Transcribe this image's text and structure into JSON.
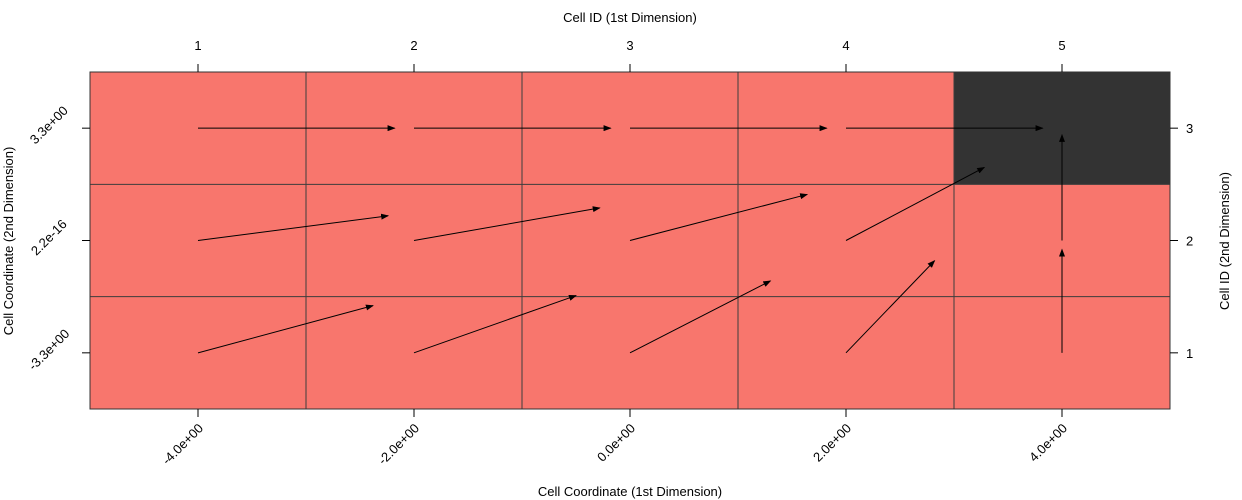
{
  "chart_data": {
    "type": "heatmap",
    "title": "",
    "x_bottom_label": "Cell Coordinate (1st Dimension)",
    "x_top_label": "Cell ID (1st Dimension)",
    "y_left_label": "Cell Coordinate (2nd Dimension)",
    "y_right_label": "Cell ID (2nd Dimension)",
    "x_ids": [
      "1",
      "2",
      "3",
      "4",
      "5"
    ],
    "y_ids": [
      "1",
      "2",
      "3"
    ],
    "x_coord_ticks": [
      "-4.0e+00",
      "-2.0e+00",
      "0.0e+00",
      "2.0e+00",
      "4.0e+00"
    ],
    "y_coord_ticks": [
      "-3.3e+00",
      "2.2e-16",
      "3.3e+00"
    ],
    "cell_colors": {
      "default": "#f8766d",
      "highlight": "#333333"
    },
    "cells": [
      {
        "x": 1,
        "y": 1,
        "state": "default",
        "arrow_dx": 0.81,
        "arrow_dy": 0.42
      },
      {
        "x": 2,
        "y": 1,
        "state": "default",
        "arrow_dx": 0.75,
        "arrow_dy": 0.51
      },
      {
        "x": 3,
        "y": 1,
        "state": "default",
        "arrow_dx": 0.65,
        "arrow_dy": 0.64
      },
      {
        "x": 4,
        "y": 1,
        "state": "default",
        "arrow_dx": 0.41,
        "arrow_dy": 0.82
      },
      {
        "x": 5,
        "y": 1,
        "state": "default",
        "arrow_dx": 0.0,
        "arrow_dy": 0.92
      },
      {
        "x": 1,
        "y": 2,
        "state": "default",
        "arrow_dx": 0.88,
        "arrow_dy": 0.22
      },
      {
        "x": 2,
        "y": 2,
        "state": "default",
        "arrow_dx": 0.86,
        "arrow_dy": 0.29
      },
      {
        "x": 3,
        "y": 2,
        "state": "default",
        "arrow_dx": 0.82,
        "arrow_dy": 0.41
      },
      {
        "x": 4,
        "y": 2,
        "state": "default",
        "arrow_dx": 0.64,
        "arrow_dy": 0.65
      },
      {
        "x": 5,
        "y": 2,
        "state": "default",
        "arrow_dx": 0.0,
        "arrow_dy": 0.94
      },
      {
        "x": 1,
        "y": 3,
        "state": "default",
        "arrow_dx": 0.91,
        "arrow_dy": 0.0
      },
      {
        "x": 2,
        "y": 3,
        "state": "default",
        "arrow_dx": 0.91,
        "arrow_dy": 0.0
      },
      {
        "x": 3,
        "y": 3,
        "state": "default",
        "arrow_dx": 0.91,
        "arrow_dy": 0.0
      },
      {
        "x": 4,
        "y": 3,
        "state": "default",
        "arrow_dx": 0.91,
        "arrow_dy": 0.0
      },
      {
        "x": 5,
        "y": 3,
        "state": "highlight",
        "arrow_dx": 0.0,
        "arrow_dy": 0.0
      }
    ],
    "grid": true,
    "legend": "none"
  }
}
